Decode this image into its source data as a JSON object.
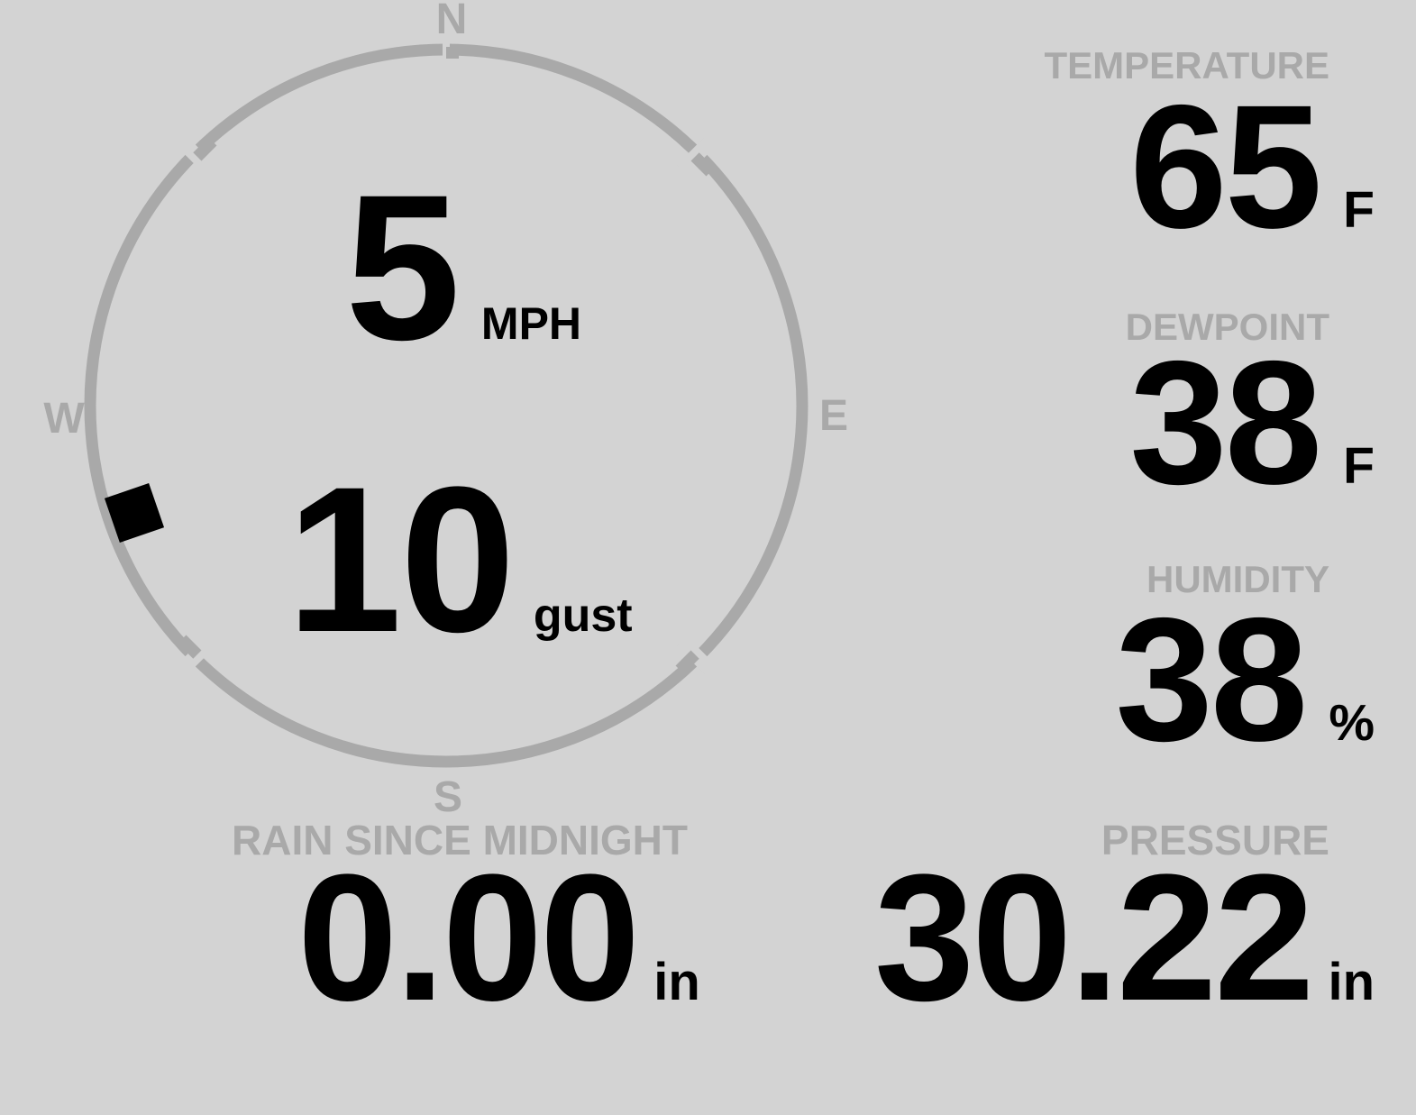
{
  "compass": {
    "cardinals": {
      "n": "N",
      "e": "E",
      "s": "S",
      "w": "W"
    },
    "wind_speed": "5",
    "wind_speed_unit": "MPH",
    "wind_gust": "10",
    "wind_gust_unit": "gust",
    "wind_direction_deg": 251,
    "tick_angles_deg": [
      0,
      45,
      135,
      225,
      315
    ]
  },
  "metrics": [
    {
      "id": "temperature",
      "label": "TEMPERATURE",
      "value": "65",
      "unit": "F"
    },
    {
      "id": "dewpoint",
      "label": "DEWPOINT",
      "value": "38",
      "unit": "F"
    },
    {
      "id": "humidity",
      "label": "HUMIDITY",
      "value": "38",
      "unit": "%"
    },
    {
      "id": "pressure",
      "label": "PRESSURE",
      "value": "30.22",
      "unit": "in"
    }
  ],
  "rain": {
    "label": "RAIN SINCE MIDNIGHT",
    "value": "0.00",
    "unit": "in"
  },
  "colors": {
    "background": "#d3d3d3",
    "muted": "#a9a9a9",
    "text": "#000000"
  }
}
